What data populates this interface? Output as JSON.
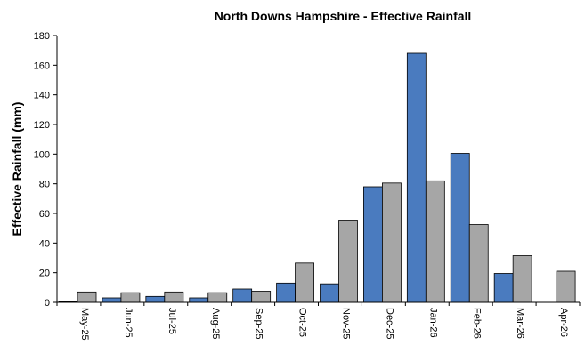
{
  "chart_data": {
    "type": "bar",
    "title": "North Downs Hampshire - Effective Rainfall",
    "ylabel": "Effective Rainfall (mm)",
    "xlabel": "",
    "ylim": [
      0,
      180
    ],
    "yticks": [
      0,
      20,
      40,
      60,
      80,
      100,
      120,
      140,
      160,
      180
    ],
    "categories": [
      "May-25",
      "Jun-25",
      "Jul-25",
      "Aug-25",
      "Sep-25",
      "Oct-25",
      "Nov-25",
      "Dec-25",
      "Jan-26",
      "Feb-26",
      "Mar-26",
      "Apr-26"
    ],
    "series": [
      {
        "color": "#4a7bbf",
        "values": [
          0.5,
          3,
          4,
          3,
          9,
          13,
          12.5,
          78,
          168,
          100.5,
          19.5,
          0
        ]
      },
      {
        "color": "#a6a6a6",
        "values": [
          7,
          6.5,
          7,
          6.5,
          7.5,
          26.5,
          55.5,
          80.5,
          82,
          52.5,
          31.5,
          21
        ]
      }
    ],
    "grid": false,
    "legend": "none"
  }
}
